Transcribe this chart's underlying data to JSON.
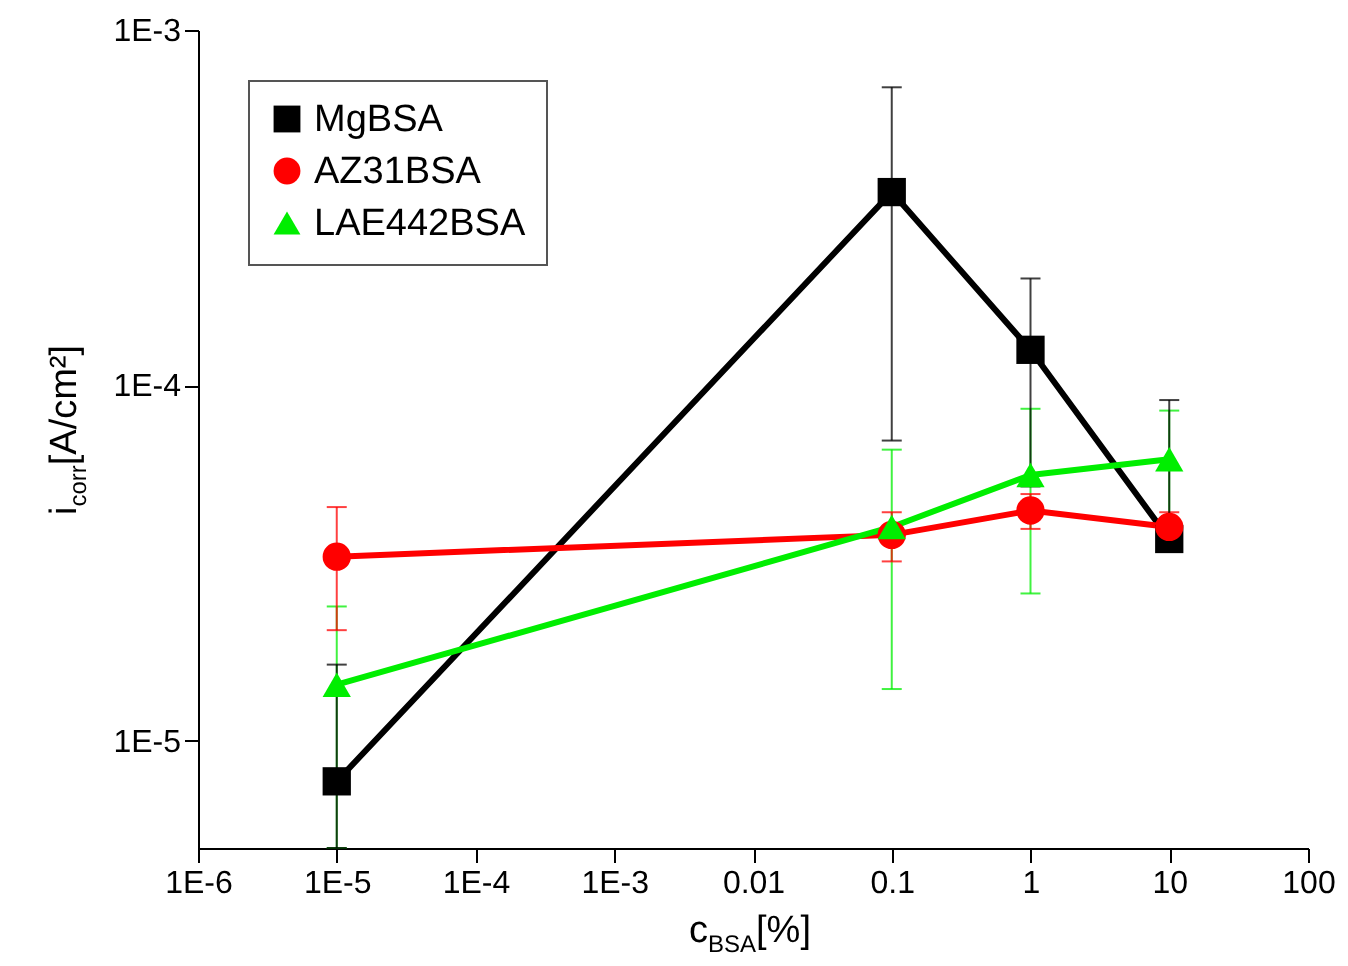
{
  "chart_data": {
    "type": "line",
    "xlabel": "c$_{BSA}$[%]",
    "ylabel": "i$_{corr}$[A/cm²]",
    "log": "xy",
    "x": [
      1e-05,
      0.1,
      1,
      10
    ],
    "xlim": [
      1e-06,
      100
    ],
    "xticks": [
      {
        "value": 1e-06,
        "label": "1E-6"
      },
      {
        "value": 1e-05,
        "label": "1E-5"
      },
      {
        "value": 0.0001,
        "label": "1E-4"
      },
      {
        "value": 0.001,
        "label": "1E-3"
      },
      0.01,
      0.1,
      1,
      10,
      100
    ],
    "ylim": [
      5e-06,
      0.001
    ],
    "yticks": [
      {
        "value": 1e-05,
        "label": "1E-5"
      },
      {
        "value": 0.0001,
        "label": "1E-4"
      },
      {
        "value": 0.001,
        "label": "1E-3"
      }
    ],
    "legend": "top left",
    "grid": false,
    "line_style": "solid",
    "series": [
      {
        "name": "MgBSA",
        "color": "#000000",
        "marker": "square",
        "values": [
          7.7e-06,
          0.00035,
          0.000126,
          3.7e-05
        ],
        "errors": [
          [
            5e-06,
            1.64e-05
          ],
          [
            7e-05,
            0.00069
          ],
          7.4e-05,
          [
            3.7e-05,
            9.1e-05
          ]
        ]
      },
      {
        "name": "AZ31BSA",
        "color": "#ff0000",
        "marker": "circle",
        "values": [
          3.3e-05,
          3.8e-05,
          4.45e-05,
          4e-05
        ],
        "errors": [
          1.25e-05,
          6e-06,
          5e-06,
          4e-06
        ]
      },
      {
        "name": "LAE442BSA",
        "color": "#00ee00",
        "marker": "triangle",
        "values": [
          1.44e-05,
          4e-05,
          5.6e-05,
          6.2e-05
        ],
        "errors": [
          [
            5e-06,
            2.39e-05
          ],
          2.6e-05,
          3e-05,
          2.3e-05
        ]
      }
    ]
  }
}
